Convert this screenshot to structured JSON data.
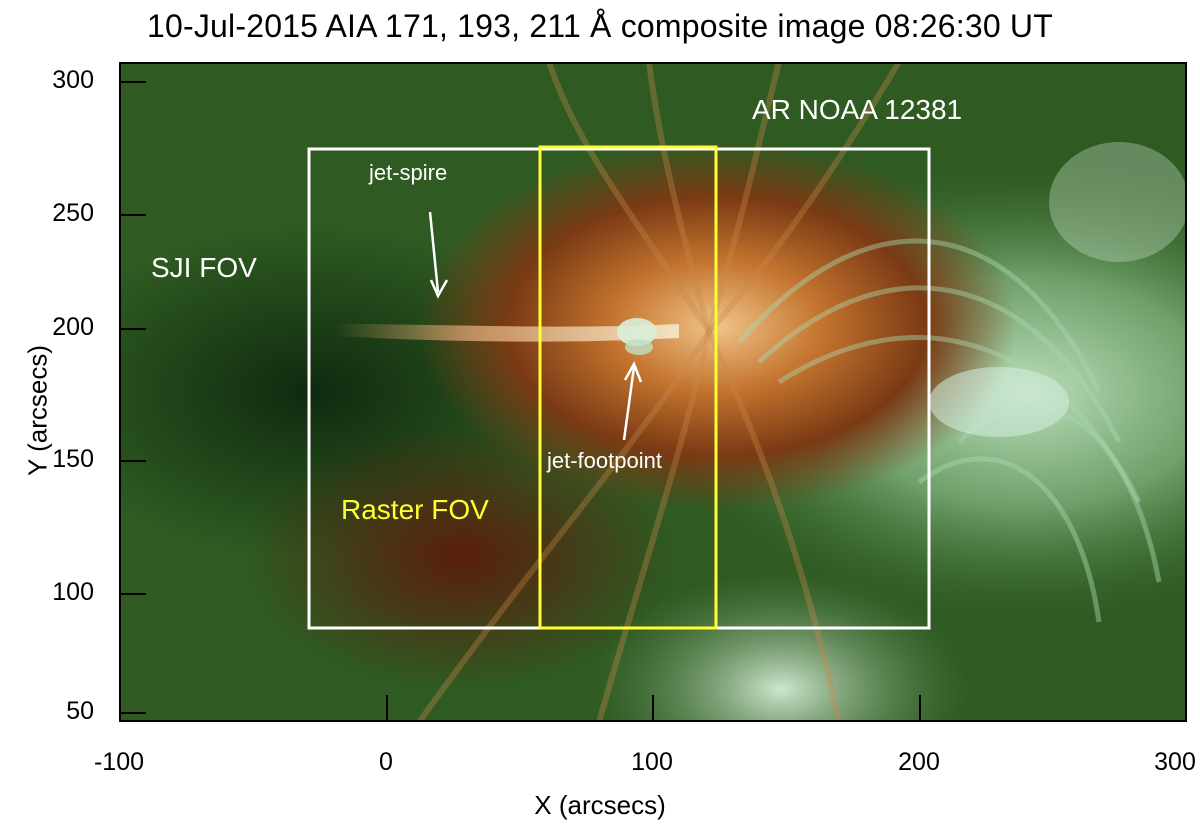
{
  "title": "10-Jul-2015 AIA 171, 193, 211 Å composite image 08:26:30 UT",
  "axes": {
    "xlabel": "X (arcsecs)",
    "ylabel": "Y (arcsecs)",
    "xticks": [
      "-100",
      "0",
      "100",
      "200",
      "300"
    ],
    "yticks": [
      "300",
      "250",
      "200",
      "150",
      "100",
      "50"
    ],
    "xlim": [
      -100,
      300
    ],
    "ylim": [
      48,
      305
    ]
  },
  "annotations": {
    "sji_fov": "SJI FOV",
    "raster_fov": "Raster FOV",
    "ar_label": "AR NOAA 12381",
    "jet_spire": "jet-spire",
    "jet_footpoint": "jet-footpoint"
  },
  "regions": {
    "sji_box": {
      "x": [
        -27,
        206
      ],
      "y": [
        86,
        270
      ],
      "color": "#ffffff"
    },
    "raster_box": {
      "x": [
        61,
        127
      ],
      "y": [
        86,
        270
      ],
      "color": "#ffff33"
    }
  },
  "colors": {
    "annotation_white": "#ffffff",
    "annotation_yellow": "#ffff33"
  }
}
